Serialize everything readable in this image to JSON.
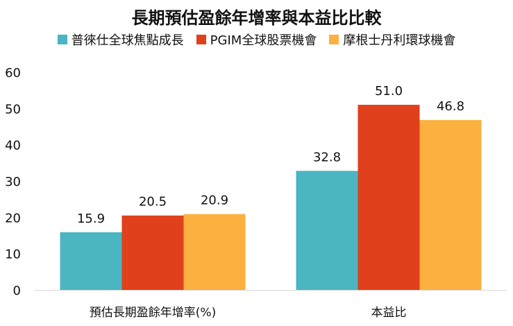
{
  "chart_data": {
    "type": "bar",
    "title": "長期預估盈餘年增率與本益比比較",
    "categories": [
      "預估長期盈餘年增率(%)",
      "本益比"
    ],
    "series": [
      {
        "name": "普徠仕全球焦點成長",
        "color": "#4BB5C1",
        "values": [
          15.9,
          32.8
        ]
      },
      {
        "name": "PGIM全球股票機會",
        "color": "#E0401C",
        "values": [
          20.5,
          51.0
        ]
      },
      {
        "name": "摩根士丹利環球機會",
        "color": "#FBB040",
        "values": [
          20.9,
          46.8
        ]
      }
    ],
    "ylim": [
      0,
      60
    ],
    "yticks": [
      0,
      10,
      20,
      30,
      40,
      50,
      60
    ],
    "xlabel": "",
    "ylabel": "",
    "grid": false,
    "legend": "top"
  }
}
